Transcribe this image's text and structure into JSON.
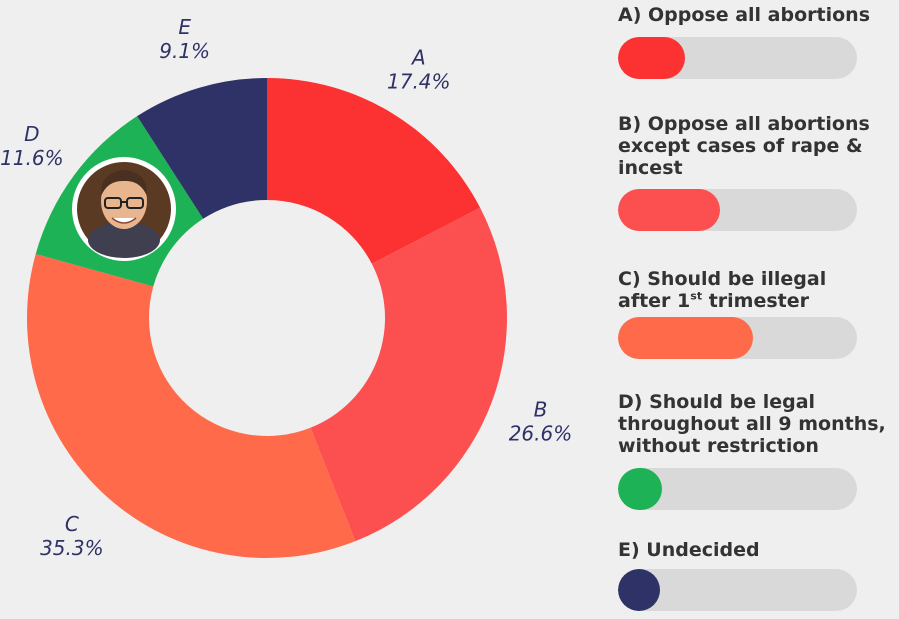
{
  "chart_data": {
    "type": "pie",
    "donut": true,
    "categories": [
      "A",
      "B",
      "C",
      "D",
      "E"
    ],
    "values": [
      17.4,
      26.6,
      35.3,
      11.6,
      9.1
    ],
    "value_labels": [
      "17.4%",
      "26.6%",
      "35.3%",
      "11.6%",
      "9.1%"
    ],
    "colors": [
      "#fc3131",
      "#fc5050",
      "#fe6a4a",
      "#1eb257",
      "#2e3266"
    ],
    "legend_labels": [
      "A) Oppose all abortions",
      "B) Oppose all abortions except cases of rape & incest",
      "C) Should be illegal after 1st trimester",
      "D) Should be legal throughout all 9 months, without restriction",
      "E) Undecided"
    ],
    "legend_placement": "right"
  },
  "legend": {
    "items": [
      {
        "line1": "A) Oppose all abortions"
      },
      {
        "line1": "B) Oppose all abortions",
        "line2": "except cases of rape &",
        "line3": "incest"
      },
      {
        "line1": "C) Should be illegal",
        "line2_pre": "after  1",
        "line2_sup": "st",
        "line2_post": " trimester"
      },
      {
        "line1": "D) Should be legal",
        "line2": "throughout all 9 months,",
        "line3": "without restriction"
      },
      {
        "line1": "E) Undecided"
      }
    ]
  },
  "photo": {
    "icon": "person-portrait-icon"
  }
}
